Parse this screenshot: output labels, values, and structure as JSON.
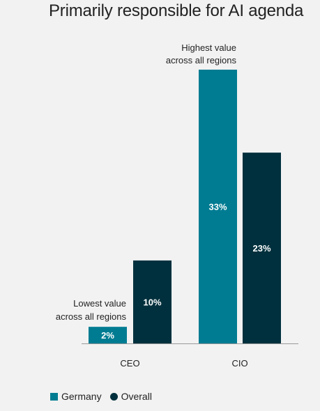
{
  "title": "Primarily responsible for AI agenda",
  "colors": {
    "germany": "#007c92",
    "overall": "#00303d",
    "axis": "#999999",
    "text_dark": "#222222",
    "label_text": "#ffffff",
    "background": "#f2f2f2"
  },
  "chart_data": {
    "type": "bar",
    "title": "Primarily responsible for AI agenda",
    "categories": [
      "CEO",
      "CIO"
    ],
    "series": [
      {
        "name": "Germany",
        "values": [
          2,
          33
        ],
        "labels": [
          "2%",
          "33%"
        ]
      },
      {
        "name": "Overall",
        "values": [
          10,
          23
        ],
        "labels": [
          "10%",
          "23%"
        ]
      }
    ],
    "ylim": [
      0,
      33
    ],
    "grid": false,
    "legend_position": "bottom-left",
    "annotations": [
      {
        "text": [
          "Highest value",
          "across all regions"
        ],
        "category": "CIO",
        "series": "Germany"
      },
      {
        "text": [
          "Lowest value",
          "across all regions"
        ],
        "category": "CEO",
        "series": "Germany"
      }
    ]
  },
  "legend": [
    {
      "label": "Germany",
      "shape": "square",
      "color": "#007c92"
    },
    {
      "label": "Overall",
      "shape": "circle",
      "color": "#00303d"
    }
  ]
}
